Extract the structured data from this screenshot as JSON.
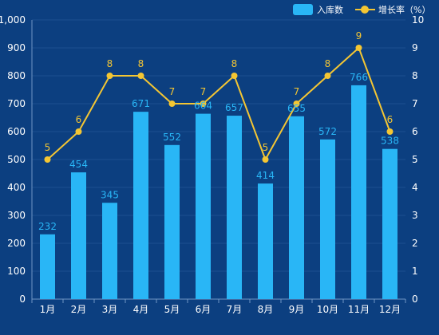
{
  "chart_data": {
    "type": "bar",
    "title": "",
    "categories": [
      "1月",
      "2月",
      "3月",
      "4月",
      "5月",
      "6月",
      "7月",
      "8月",
      "9月",
      "10月",
      "11月",
      "12月"
    ],
    "series": [
      {
        "name": "入库数",
        "type": "bar",
        "axis": "left",
        "color": "#29b6f6",
        "values": [
          232,
          454,
          345,
          671,
          552,
          664,
          657,
          414,
          655,
          572,
          766,
          538
        ]
      },
      {
        "name": "增长率",
        "type": "line",
        "axis": "right",
        "color": "#f4c633",
        "values": [
          5,
          6,
          8,
          8,
          7,
          7,
          8,
          5,
          7,
          8,
          9,
          6
        ]
      }
    ],
    "y_left": {
      "min": 0,
      "max": 1000,
      "ticks": [
        "0",
        "100",
        "200",
        "300",
        "400",
        "500",
        "600",
        "700",
        "800",
        "900",
        "1,000"
      ]
    },
    "y_right": {
      "min": 0,
      "max": 10,
      "ticks": [
        "0",
        "1",
        "2",
        "3",
        "4",
        "5",
        "6",
        "7",
        "8",
        "9",
        "10"
      ],
      "label": "（%）"
    },
    "legend_position": "top-right",
    "grid": true,
    "colors": {
      "background": "#0c3f80",
      "grid": "#1b4f90",
      "axis": "#6f95c4",
      "text": "#ffffff"
    }
  }
}
